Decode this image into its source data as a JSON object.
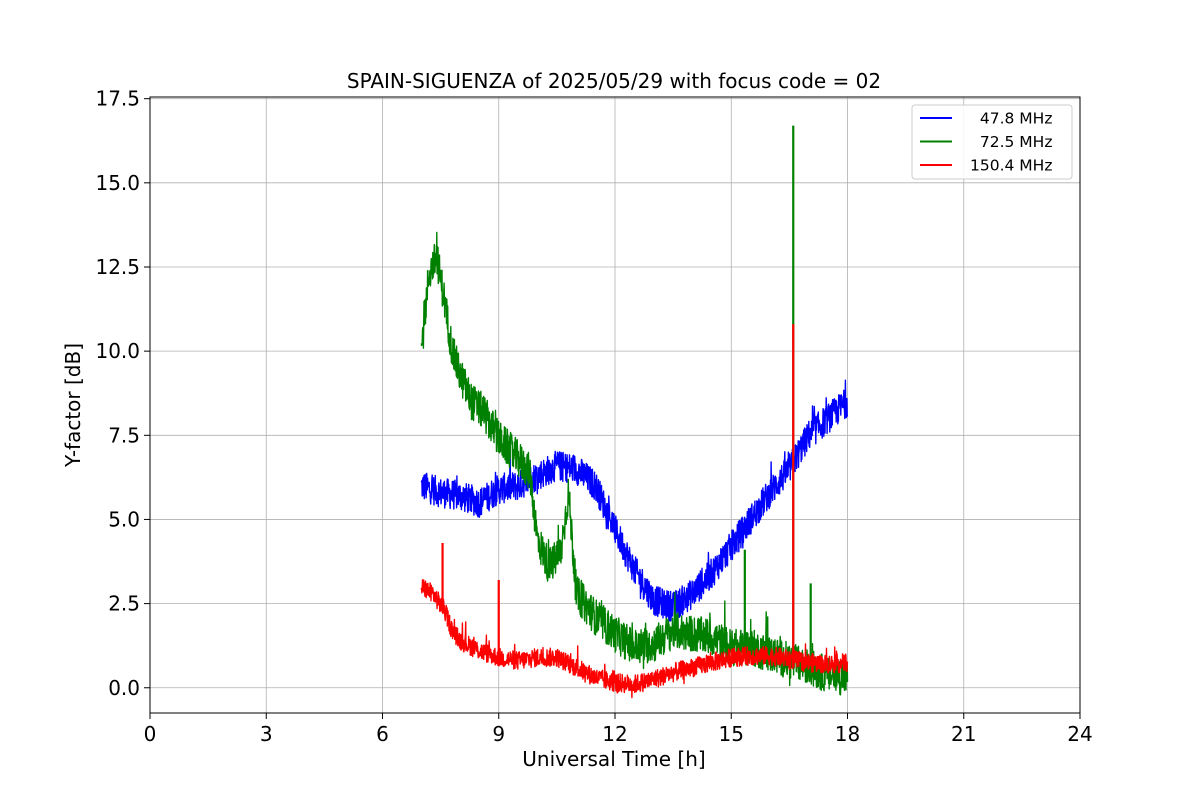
{
  "chart_data": {
    "type": "line",
    "title": "SPAIN-SIGUENZA of 2025/05/29 with focus code = 02",
    "xlabel": "Universal Time [h]",
    "ylabel": "Y-factor [dB]",
    "xlim": [
      0,
      24
    ],
    "ylim": [
      -0.75,
      17.55
    ],
    "xticks": [
      0,
      3,
      6,
      9,
      12,
      15,
      18,
      21,
      24
    ],
    "yticks": [
      0.0,
      2.5,
      5.0,
      7.5,
      10.0,
      12.5,
      15.0,
      17.5
    ],
    "xtick_labels": [
      "0",
      "3",
      "6",
      "9",
      "12",
      "15",
      "18",
      "21",
      "24"
    ],
    "ytick_labels": [
      "0.0",
      "2.5",
      "5.0",
      "7.5",
      "10.0",
      "12.5",
      "15.0",
      "17.5"
    ],
    "grid": true,
    "legend_position": "top-right",
    "series": [
      {
        "name": "  47.8 MHz",
        "color": "#0000ff",
        "x": [
          7.0,
          7.5,
          8.0,
          8.5,
          9.0,
          9.5,
          10.0,
          10.5,
          11.0,
          11.5,
          12.0,
          12.5,
          13.0,
          13.5,
          14.0,
          14.5,
          15.0,
          15.5,
          16.0,
          16.5,
          17.0,
          17.5,
          18.0
        ],
        "y": [
          6.0,
          5.8,
          5.7,
          5.5,
          5.9,
          6.0,
          6.3,
          6.6,
          6.5,
          6.0,
          4.7,
          3.5,
          2.6,
          2.4,
          2.8,
          3.4,
          4.2,
          5.0,
          5.8,
          6.5,
          7.5,
          8.0,
          8.5
        ],
        "noise": 0.45
      },
      {
        "name": "  72.5 MHz",
        "color": "#008000",
        "x": [
          7.0,
          7.2,
          7.4,
          7.6,
          7.8,
          8.0,
          8.3,
          8.6,
          9.0,
          9.5,
          9.8,
          10.0,
          10.3,
          10.6,
          10.8,
          11.0,
          11.5,
          12.0,
          12.5,
          13.0,
          13.5,
          14.0,
          14.5,
          15.0,
          15.5,
          16.0,
          16.5,
          17.0,
          17.5,
          18.0
        ],
        "y": [
          10.0,
          12.3,
          12.8,
          11.5,
          10.0,
          9.3,
          8.5,
          8.2,
          7.4,
          6.8,
          6.4,
          4.4,
          3.6,
          4.0,
          5.8,
          2.8,
          2.1,
          1.6,
          1.2,
          1.3,
          1.7,
          1.6,
          1.5,
          1.2,
          1.2,
          1.0,
          0.8,
          0.6,
          0.4,
          0.3
        ],
        "noise": 0.55,
        "spikes": [
          {
            "x": 16.6,
            "y": 16.7
          },
          {
            "x": 15.35,
            "y": 4.1
          },
          {
            "x": 17.05,
            "y": 3.1
          }
        ]
      },
      {
        "name": "150.4 MHz",
        "color": "#ff0000",
        "x": [
          7.0,
          7.3,
          7.6,
          7.8,
          8.0,
          8.5,
          9.0,
          9.5,
          10.0,
          10.5,
          11.0,
          11.5,
          12.0,
          12.5,
          13.0,
          13.5,
          14.0,
          14.5,
          15.0,
          15.5,
          16.0,
          16.5,
          17.0,
          17.5,
          18.0
        ],
        "y": [
          3.0,
          2.8,
          2.3,
          1.7,
          1.4,
          1.1,
          0.9,
          0.8,
          0.9,
          0.9,
          0.6,
          0.3,
          0.15,
          0.1,
          0.25,
          0.45,
          0.6,
          0.75,
          0.9,
          0.95,
          0.95,
          0.85,
          0.75,
          0.7,
          0.75
        ],
        "noise": 0.28,
        "spikes": [
          {
            "x": 16.6,
            "y": 10.8
          },
          {
            "x": 9.0,
            "y": 3.2
          },
          {
            "x": 7.55,
            "y": 4.3
          }
        ]
      }
    ]
  }
}
